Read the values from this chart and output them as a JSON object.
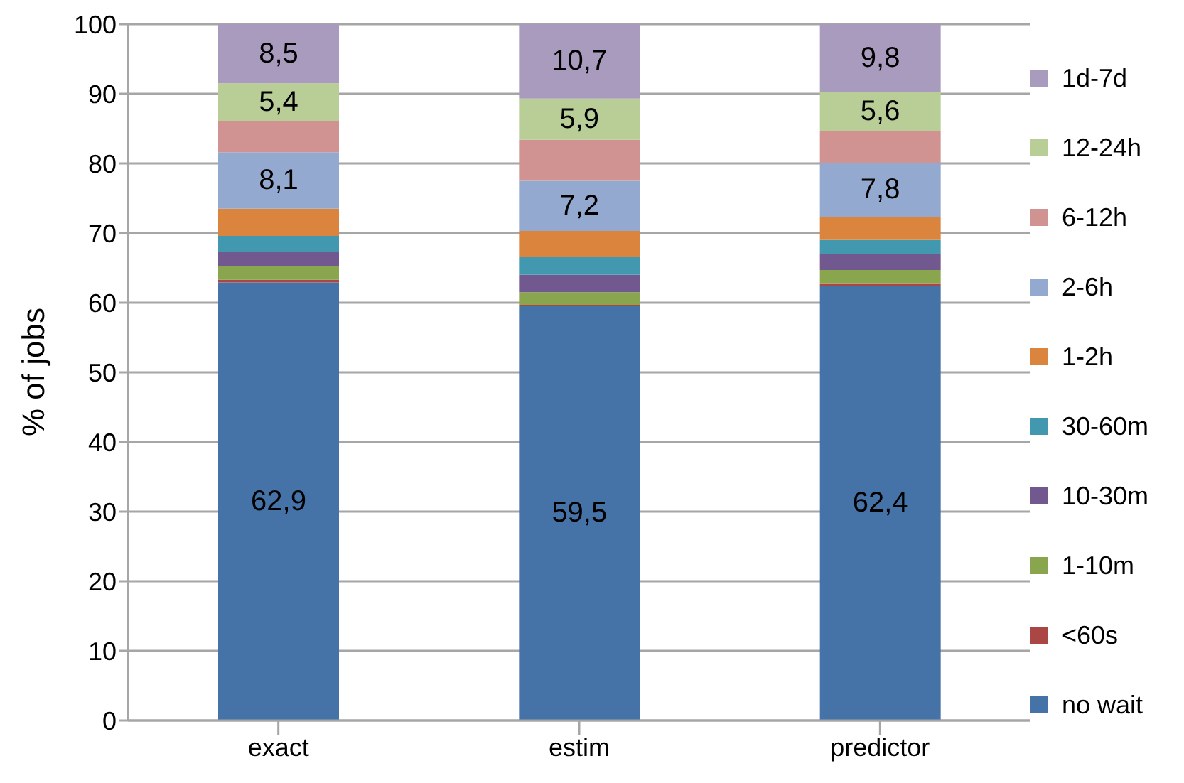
{
  "chart_data": {
    "type": "bar",
    "stacked": true,
    "ylabel": "% of jobs",
    "categories": [
      "exact",
      "estim",
      "predictor"
    ],
    "ylim": [
      0,
      100
    ],
    "yticks": [
      0,
      10,
      20,
      30,
      40,
      50,
      60,
      70,
      80,
      90,
      100
    ],
    "grid": "y",
    "legend": "right",
    "series": [
      {
        "name": "no wait",
        "color": "#4572a7",
        "values": [
          62.9,
          59.5,
          62.4
        ],
        "value_labels": [
          "62,9",
          "59,5",
          "62,4"
        ]
      },
      {
        "name": "<60s",
        "color": "#aa4643",
        "values": [
          0.4,
          0.2,
          0.4
        ]
      },
      {
        "name": "1-10m",
        "color": "#89a54e",
        "values": [
          1.9,
          1.8,
          1.9
        ]
      },
      {
        "name": "10-30m",
        "color": "#71588f",
        "values": [
          2.1,
          2.5,
          2.3
        ]
      },
      {
        "name": "30-60m",
        "color": "#4198af",
        "values": [
          2.3,
          2.6,
          2.0
        ]
      },
      {
        "name": "1-2h",
        "color": "#db843d",
        "values": [
          3.9,
          3.7,
          3.3
        ]
      },
      {
        "name": "2-6h",
        "color": "#93a9cf",
        "values": [
          8.1,
          7.2,
          7.8
        ],
        "value_labels": [
          "8,1",
          "7,2",
          "7,8"
        ]
      },
      {
        "name": "6-12h",
        "color": "#d19392",
        "values": [
          4.5,
          5.9,
          4.5
        ]
      },
      {
        "name": "12-24h",
        "color": "#b9cd96",
        "values": [
          5.4,
          5.9,
          5.6
        ],
        "value_labels": [
          "5,4",
          "5,9",
          "5,6"
        ]
      },
      {
        "name": "1d-7d",
        "color": "#a99bbd",
        "values": [
          8.5,
          10.7,
          9.8
        ],
        "value_labels": [
          "8,5",
          "10,7",
          "9,8"
        ]
      }
    ]
  }
}
